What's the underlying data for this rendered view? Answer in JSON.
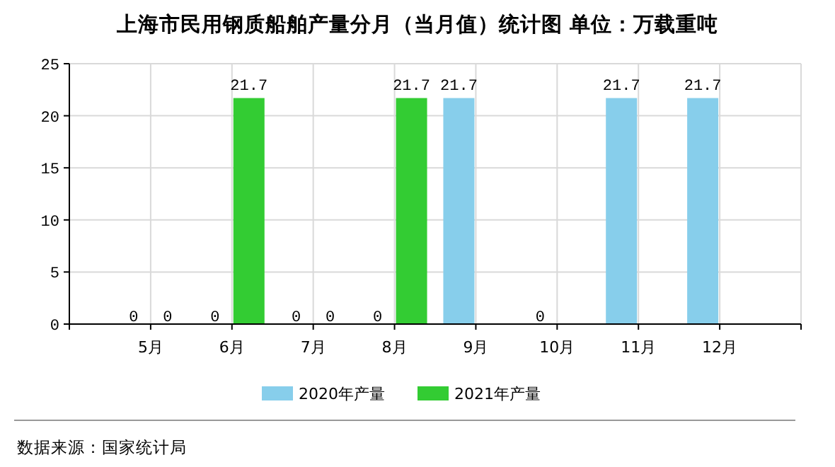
{
  "chart_data": {
    "type": "bar",
    "title": "上海市民用钢质船舶产量分月（当月值）统计图 单位：万载重吨",
    "categories": [
      "5月",
      "6月",
      "7月",
      "8月",
      "9月",
      "10月",
      "11月",
      "12月"
    ],
    "series": [
      {
        "name": "2020年产量",
        "color": "#87ceeb",
        "values": [
          0,
          0,
          0,
          0,
          21.7,
          0,
          21.7,
          21.7
        ]
      },
      {
        "name": "2021年产量",
        "color": "#33cc33",
        "values": [
          0,
          21.7,
          0,
          21.7,
          null,
          null,
          null,
          null
        ]
      }
    ],
    "ylim": [
      0,
      25
    ],
    "yticks": [
      0,
      5,
      10,
      15,
      20,
      25
    ],
    "grid": true,
    "legend": "bottom",
    "data_labels": true,
    "annotations": [
      "数据来源：国家统计局"
    ]
  }
}
